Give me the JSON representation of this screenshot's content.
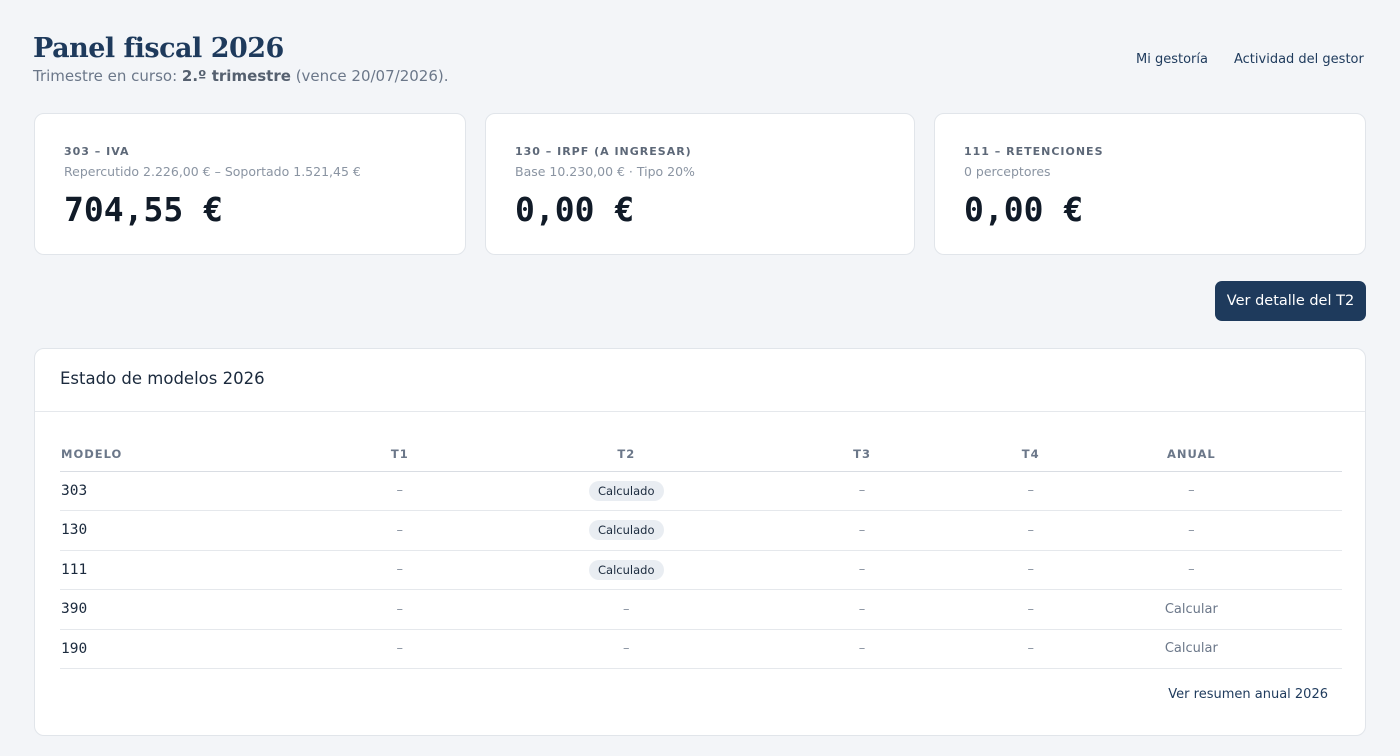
{
  "header": {
    "title": "Panel fiscal 2026",
    "subtitle_prefix": "Trimestre en curso:",
    "subtitle_bold": "2.º trimestre",
    "subtitle_suffix": "(vence 20/07/2026)."
  },
  "nav": [
    "Mi gestoría",
    "Actividad del gestor"
  ],
  "cards": [
    {
      "label": "303 – IVA",
      "detail": "Repercutido 2.226,00 € – Soportado 1.521,45 €",
      "amount": "704,55 €"
    },
    {
      "label": "130 – IRPF (A INGRESAR)",
      "detail": "Base 10.230,00 € · Tipo 20%",
      "amount": "0,00 €"
    },
    {
      "label": "111 – RETENCIONES",
      "detail": "0 perceptores",
      "amount": "0,00 €"
    }
  ],
  "button": "Ver detalle del T2",
  "table": {
    "title": "Estado de modelos 2026",
    "headers": [
      "MODELO",
      "T1",
      "T2",
      "T3",
      "T4",
      "ANUAL"
    ],
    "rows": [
      [
        "303",
        "–",
        {
          "text": "Calculado",
          "style": "badge"
        },
        "–",
        "–",
        "–"
      ],
      [
        "130",
        "–",
        {
          "text": "Calculado",
          "style": "badge"
        },
        "–",
        "–",
        "–"
      ],
      [
        "111",
        "–",
        {
          "text": "Calculado",
          "style": "badge"
        },
        "–",
        "–",
        "–"
      ],
      [
        "390",
        "–",
        "–",
        "–",
        "–",
        {
          "text": "Calcular",
          "style": "link"
        }
      ],
      [
        "190",
        "–",
        "–",
        "–",
        "–",
        {
          "text": "Calcular",
          "style": "link"
        }
      ]
    ],
    "footer_link": "Ver resumen anual 2026"
  }
}
